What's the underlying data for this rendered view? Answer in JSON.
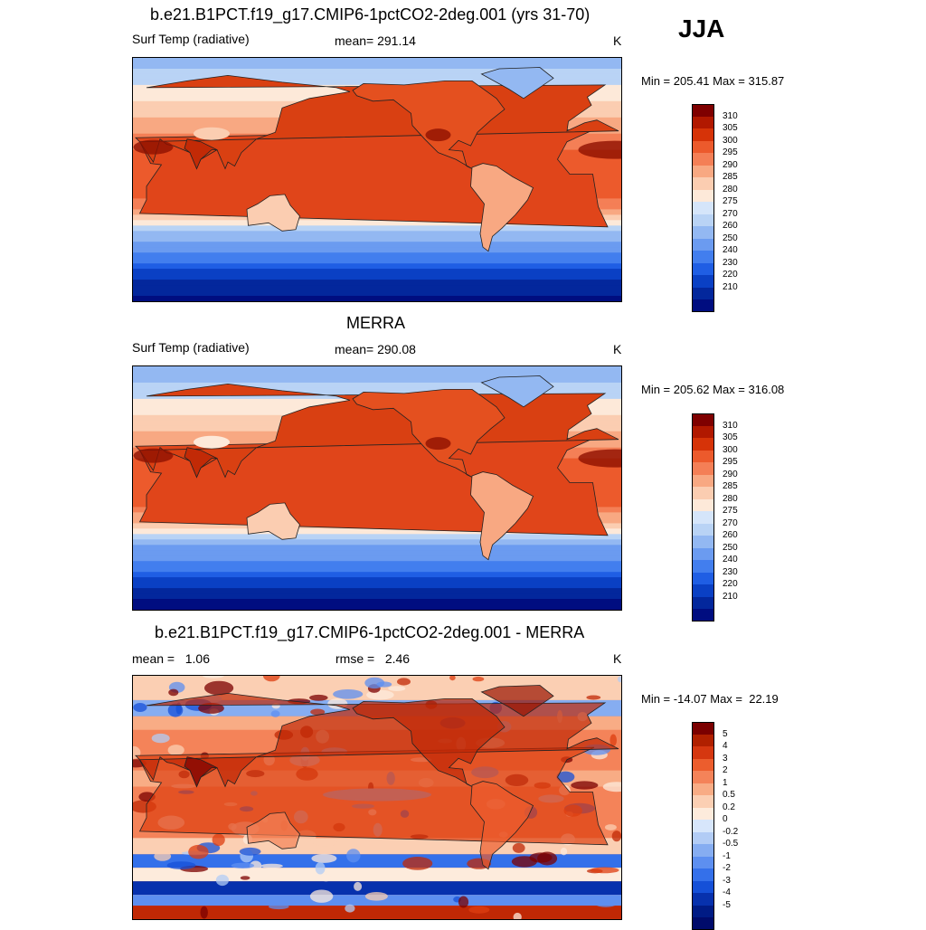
{
  "season": "JJA",
  "panels": [
    {
      "title": "b.e21.B1PCT.f19_g17.CMIP6-1pctCO2-2deg.001 (yrs 31-70)",
      "left_label": "Surf Temp (radiative)",
      "center_label": "mean= 291.14",
      "units": "K",
      "minmax": "Min = 205.41 Max = 315.87",
      "colorbar_ticks": [
        "310",
        "305",
        "300",
        "295",
        "290",
        "285",
        "280",
        "275",
        "270",
        "260",
        "250",
        "240",
        "230",
        "220",
        "210"
      ]
    },
    {
      "title": "MERRA",
      "left_label": "Surf Temp (radiative)",
      "center_label": "mean= 290.08",
      "units": "K",
      "minmax": "Min = 205.62 Max = 316.08",
      "colorbar_ticks": [
        "310",
        "305",
        "300",
        "295",
        "290",
        "285",
        "280",
        "275",
        "270",
        "260",
        "250",
        "240",
        "230",
        "220",
        "210"
      ]
    },
    {
      "title": "b.e21.B1PCT.f19_g17.CMIP6-1pctCO2-2deg.001 - MERRA",
      "left_label": "mean =   1.06",
      "center_label": "rmse =   2.46",
      "units": "K",
      "minmax": "Min = -14.07 Max =  22.19",
      "colorbar_ticks": [
        "5",
        "4",
        "3",
        "2",
        "1",
        "0.5",
        "0.2",
        "0",
        "-0.2",
        "-0.5",
        "-1",
        "-2",
        "-3",
        "-4",
        "-5"
      ]
    }
  ],
  "colors": {
    "abs_scale": [
      "#f5fbff",
      "#dbe9f9",
      "#b9d3f5",
      "#93b8f2",
      "#6b9bf0",
      "#427eee",
      "#1f5ee4",
      "#0a40c4",
      "#03279c",
      "#000d80",
      "#00006e"
    ],
    "warm_scale": [
      "#fde9d9",
      "#fbcdb1",
      "#f8a882",
      "#f47f56",
      "#ec5a2c",
      "#de3d10",
      "#c22a06",
      "#9c1500",
      "#7f0000"
    ],
    "diff_blue": [
      "#d7e6fb",
      "#b2ccf5",
      "#86adf1",
      "#5d8ff0",
      "#3470ea",
      "#1550d8",
      "#0731ad",
      "#001b85",
      "#000b6b"
    ],
    "diff_red": [
      "#fdebdc",
      "#fbcfb3",
      "#f8ac85",
      "#f48359",
      "#ec5d2d",
      "#dd3e10",
      "#c02805",
      "#981200",
      "#7b0000"
    ]
  },
  "chart_data": {
    "type": "heatmap",
    "maps": [
      {
        "title": "b.e21.B1PCT.f19_g17.CMIP6-1pctCO2-2deg.001 (yrs 31-70)",
        "variable": "Surf Temp (radiative)",
        "mean": 291.14,
        "min": 205.41,
        "max": 315.87,
        "units": "K",
        "levels": [
          210,
          220,
          230,
          240,
          250,
          260,
          270,
          275,
          280,
          285,
          290,
          295,
          300,
          305,
          310
        ]
      },
      {
        "title": "MERRA",
        "variable": "Surf Temp (radiative)",
        "mean": 290.08,
        "min": 205.62,
        "max": 316.08,
        "units": "K",
        "levels": [
          210,
          220,
          230,
          240,
          250,
          260,
          270,
          275,
          280,
          285,
          290,
          295,
          300,
          305,
          310
        ]
      },
      {
        "title": "b.e21.B1PCT.f19_g17.CMIP6-1pctCO2-2deg.001 - MERRA",
        "mean": 1.06,
        "rmse": 2.46,
        "min": -14.07,
        "max": 22.19,
        "units": "K",
        "levels": [
          -5,
          -4,
          -3,
          -2,
          -1,
          -0.5,
          -0.2,
          0,
          0.2,
          0.5,
          1,
          2,
          3,
          4,
          5
        ]
      }
    ]
  }
}
